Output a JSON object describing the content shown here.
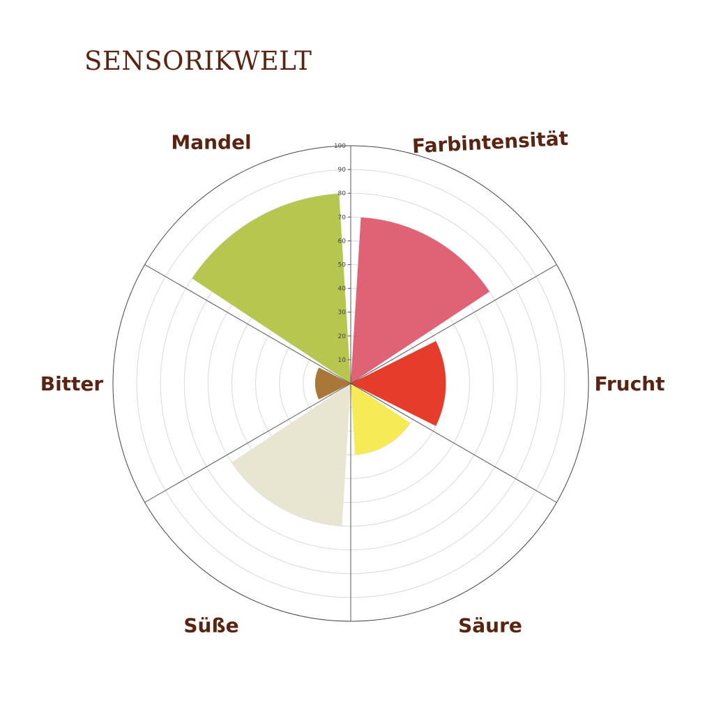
{
  "title": "SENSORIKWELT",
  "chart_data": {
    "type": "polar-bar",
    "title": "SENSORIKWELT",
    "categories": [
      "Farbintensität",
      "Frucht",
      "Säure",
      "Süße",
      "Bitter",
      "Mandel"
    ],
    "values": [
      70,
      40,
      30,
      60,
      15,
      80
    ],
    "colors": [
      "#e06375",
      "#e63c2b",
      "#f7eb55",
      "#e8e6d1",
      "#a97839",
      "#b7c64e"
    ],
    "rlim": [
      0,
      100
    ],
    "ticks": [
      "10",
      "20",
      "30",
      "40",
      "50",
      "60",
      "70",
      "80",
      "90",
      "100"
    ],
    "grid": true
  }
}
